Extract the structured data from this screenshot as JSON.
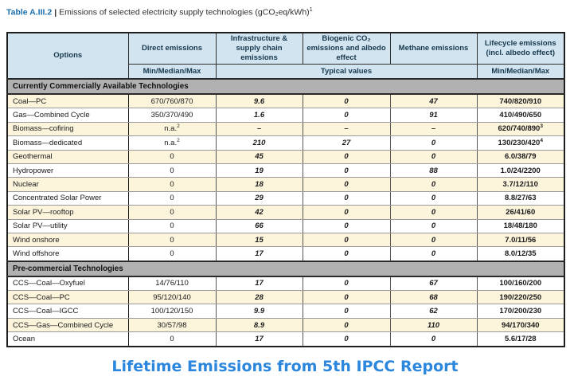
{
  "title": {
    "label": "Table A.III.2",
    "separator": "|",
    "text": "Emissions of selected electricity supply technologies (gCO₂eq/kWh)",
    "footnote_marker": "1"
  },
  "caption": "Lifetime Emissions from 5th IPCC Report",
  "colors": {
    "title_blue": "#1c6fad",
    "caption_blue": "#2b87dd",
    "header_bg": "#d2e4f0",
    "header_text": "#16384e",
    "section_bg": "#b1b1b1",
    "row_cream": "#fdf4dc",
    "row_white": "#ffffff",
    "border_dark": "#1f1f1f",
    "border_light": "#999999"
  },
  "table": {
    "header": {
      "options": "Options",
      "direct": "Direct emissions",
      "infra": "Infrastructure & supply chain emissions",
      "biogenic": "Biogenic CO₂ emissions and albedo effect",
      "methane": "Methane emissions",
      "lifecycle": "Lifecycle emissions (incl. albedo effect)",
      "direct_sub": "Min/Median/Max",
      "typical_sub": "Typical values",
      "lifecycle_sub": "Min/Median/Max"
    },
    "sections": [
      {
        "name": "Currently Commercially Available Technologies",
        "first_row_cream": true,
        "rows": [
          {
            "option": "Coal—PC",
            "direct": "670/760/870",
            "infra": "9.6",
            "biogenic": "0",
            "methane": "47",
            "lifecycle": "740/820/910"
          },
          {
            "option": "Gas—Combined Cycle",
            "direct": "350/370/490",
            "infra": "1.6",
            "biogenic": "0",
            "methane": "91",
            "lifecycle": "410/490/650"
          },
          {
            "option": "Biomass—cofiring",
            "direct": "n.a.",
            "direct_sup": "2",
            "infra": "–",
            "biogenic": "–",
            "methane": "–",
            "lifecycle": "620/740/890",
            "lifecycle_sup": "3"
          },
          {
            "option": "Biomass—dedicated",
            "direct": "n.a.",
            "direct_sup": "2",
            "infra": "210",
            "biogenic": "27",
            "methane": "0",
            "lifecycle": "130/230/420",
            "lifecycle_sup": "4"
          },
          {
            "option": "Geothermal",
            "direct": "0",
            "infra": "45",
            "biogenic": "0",
            "methane": "0",
            "lifecycle": "6.0/38/79"
          },
          {
            "option": "Hydropower",
            "direct": "0",
            "infra": "19",
            "biogenic": "0",
            "methane": "88",
            "lifecycle": "1.0/24/2200"
          },
          {
            "option": "Nuclear",
            "direct": "0",
            "infra": "18",
            "biogenic": "0",
            "methane": "0",
            "lifecycle": "3.7/12/110"
          },
          {
            "option": "Concentrated Solar Power",
            "direct": "0",
            "infra": "29",
            "biogenic": "0",
            "methane": "0",
            "lifecycle": "8.8/27/63"
          },
          {
            "option": "Solar PV—rooftop",
            "direct": "0",
            "infra": "42",
            "biogenic": "0",
            "methane": "0",
            "lifecycle": "26/41/60"
          },
          {
            "option": "Solar PV—utility",
            "direct": "0",
            "infra": "66",
            "biogenic": "0",
            "methane": "0",
            "lifecycle": "18/48/180"
          },
          {
            "option": "Wind onshore",
            "direct": "0",
            "infra": "15",
            "biogenic": "0",
            "methane": "0",
            "lifecycle": "7.0/11/56"
          },
          {
            "option": "Wind offshore",
            "direct": "0",
            "infra": "17",
            "biogenic": "0",
            "methane": "0",
            "lifecycle": "8.0/12/35"
          }
        ]
      },
      {
        "name": "Pre-commercial Technologies",
        "first_row_cream": false,
        "rows": [
          {
            "option": "CCS—Coal—Oxyfuel",
            "direct": "14/76/110",
            "infra": "17",
            "biogenic": "0",
            "methane": "67",
            "lifecycle": "100/160/200"
          },
          {
            "option": "CCS—Coal—PC",
            "direct": "95/120/140",
            "infra": "28",
            "biogenic": "0",
            "methane": "68",
            "lifecycle": "190/220/250"
          },
          {
            "option": "CCS—Coal—IGCC",
            "direct": "100/120/150",
            "infra": "9.9",
            "biogenic": "0",
            "methane": "62",
            "lifecycle": "170/200/230"
          },
          {
            "option": "CCS—Gas—Combined Cycle",
            "direct": "30/57/98",
            "infra": "8.9",
            "biogenic": "0",
            "methane": "110",
            "lifecycle": "94/170/340"
          },
          {
            "option": "Ocean",
            "direct": "0",
            "infra": "17",
            "biogenic": "0",
            "methane": "0",
            "lifecycle": "5.6/17/28"
          }
        ]
      }
    ]
  }
}
